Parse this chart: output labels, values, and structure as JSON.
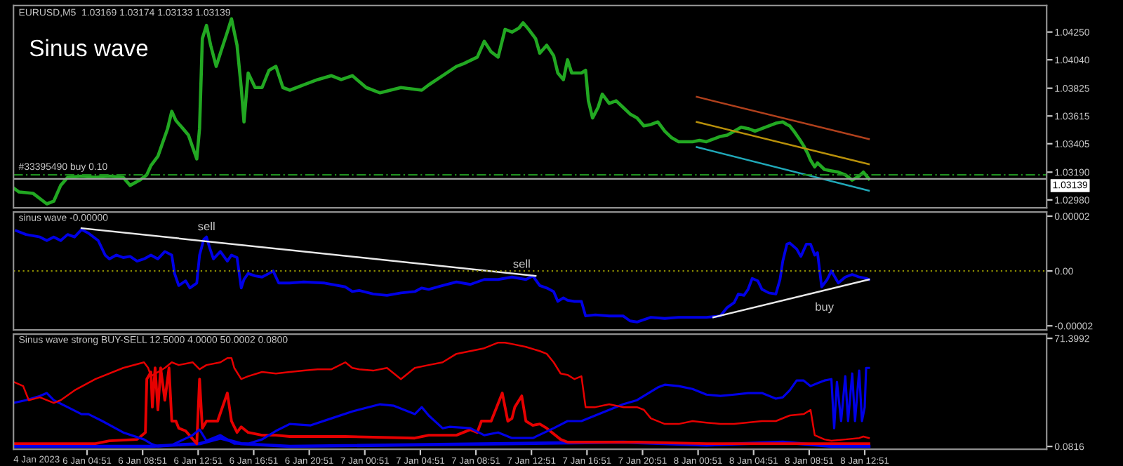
{
  "chart_data": [
    {
      "type": "line",
      "title": "EURUSD,M5  1.03169 1.03174 1.03133 1.03139",
      "annotations": [
        "Sinus wave"
      ],
      "xlim": [
        "2023-01-05T23:33",
        "2023-01-09T01:57"
      ],
      "ylim": [
        1.0292,
        1.0445
      ],
      "tick_labels": "y",
      "yticks": [
        {
          "value": 1.0425,
          "label": "1.04250"
        },
        {
          "value": 1.0404,
          "label": "1.04040"
        },
        {
          "value": 1.03825,
          "label": "1.03825"
        },
        {
          "value": 1.03615,
          "label": "1.03615"
        },
        {
          "value": 1.03405,
          "label": "1.03405"
        },
        {
          "value": 1.0319,
          "label": "1.03190"
        },
        {
          "value": 1.0298,
          "label": "1.02980"
        }
      ],
      "ref_lines": [
        {
          "axis": "y",
          "value": 1.0317,
          "label": "#33395490 buy 0.10",
          "color": "#1e8c1e",
          "line_style": "dashed"
        },
        {
          "axis": "y",
          "value": 1.03139,
          "label": "1.03139",
          "color": "#a0a0a0",
          "line_style": "solid"
        }
      ],
      "series": [
        {
          "color": "#22a822",
          "x": [
            "2023-01-05T23:33",
            "2023-01-05T23:57",
            "2023-01-06T00:57",
            "2023-01-06T01:57",
            "2023-01-06T02:27",
            "2023-01-06T02:57",
            "2023-01-06T03:27",
            "2023-01-06T04:27",
            "2023-01-06T05:27",
            "2023-01-06T06:27",
            "2023-01-06T07:27",
            "2023-01-06T07:57",
            "2023-01-06T08:39",
            "2023-01-06T09:09",
            "2023-01-06T09:27",
            "2023-01-06T09:57",
            "2023-01-06T10:15",
            "2023-01-06T10:39",
            "2023-01-06T10:57",
            "2023-01-06T11:15",
            "2023-01-06T11:45",
            "2023-01-06T12:09",
            "2023-01-06T12:45",
            "2023-01-06T12:57",
            "2023-01-06T13:09",
            "2023-01-06T13:27",
            "2023-01-06T13:45",
            "2023-01-06T14:09",
            "2023-01-06T14:27",
            "2023-01-06T14:57",
            "2023-01-06T15:15",
            "2023-01-06T15:39",
            "2023-01-06T15:57",
            "2023-01-06T16:09",
            "2023-01-06T16:27",
            "2023-01-06T16:57",
            "2023-01-06T17:27",
            "2023-01-06T17:57",
            "2023-01-06T18:27",
            "2023-01-06T18:57",
            "2023-01-06T19:27",
            "2023-01-06T20:27",
            "2023-01-06T21:27",
            "2023-01-06T22:27",
            "2023-01-06T23:09",
            "2023-01-06T23:57",
            "2023-01-07T00:57",
            "2023-01-07T01:57",
            "2023-01-07T03:27",
            "2023-01-07T04:57",
            "2023-01-07T05:27",
            "2023-01-07T06:27",
            "2023-01-07T07:27",
            "2023-01-07T07:57",
            "2023-01-07T08:57",
            "2023-01-07T09:27",
            "2023-01-07T09:57",
            "2023-01-07T10:27",
            "2023-01-07T10:57",
            "2023-01-07T11:27",
            "2023-01-07T11:57",
            "2023-01-07T12:15",
            "2023-01-07T12:39",
            "2023-01-07T13:09",
            "2023-01-07T13:27",
            "2023-01-07T13:57",
            "2023-01-07T14:27",
            "2023-01-07T14:45",
            "2023-01-07T15:09",
            "2023-01-07T15:27",
            "2023-01-07T15:45",
            "2023-01-07T16:27",
            "2023-01-07T16:45",
            "2023-01-07T16:57",
            "2023-01-07T17:15",
            "2023-01-07T17:39",
            "2023-01-07T17:57",
            "2023-01-07T18:27",
            "2023-01-07T18:57",
            "2023-01-07T19:27",
            "2023-01-07T19:57",
            "2023-01-07T20:27",
            "2023-01-07T20:57",
            "2023-01-07T21:27",
            "2023-01-07T21:57",
            "2023-01-07T22:27",
            "2023-01-07T22:57",
            "2023-01-07T23:27",
            "2023-01-08T00:27",
            "2023-01-08T00:57",
            "2023-01-08T01:27",
            "2023-01-08T01:57",
            "2023-01-08T02:27",
            "2023-01-08T02:57",
            "2023-01-08T03:27",
            "2023-01-08T03:57",
            "2023-01-08T04:27",
            "2023-01-08T04:57",
            "2023-01-08T05:27",
            "2023-01-08T05:57",
            "2023-01-08T06:27",
            "2023-01-08T06:57",
            "2023-01-08T07:15",
            "2023-01-08T07:27",
            "2023-01-08T07:45",
            "2023-01-08T08:09",
            "2023-01-08T08:27",
            "2023-01-08T08:45",
            "2023-01-08T08:57",
            "2023-01-08T09:15",
            "2023-01-08T09:27",
            "2023-01-08T09:57",
            "2023-01-08T10:27",
            "2023-01-08T10:57",
            "2023-01-08T11:27",
            "2023-01-08T11:57",
            "2023-01-08T12:27",
            "2023-01-08T12:45",
            "2023-01-08T13:09"
          ],
          "values": [
            1.0307,
            1.0304,
            1.0303,
            1.0295,
            1.0297,
            1.0309,
            1.0315,
            1.0316,
            1.0315,
            1.0316,
            1.0315,
            1.0309,
            1.0313,
            1.0317,
            1.0324,
            1.0331,
            1.034,
            1.0352,
            1.0365,
            1.0358,
            1.0352,
            1.0347,
            1.0329,
            1.0352,
            1.042,
            1.043,
            1.0415,
            1.0399,
            1.0409,
            1.0425,
            1.0435,
            1.0415,
            1.0383,
            1.0357,
            1.0394,
            1.0383,
            1.0383,
            1.0396,
            1.0399,
            1.0383,
            1.0381,
            1.0385,
            1.0389,
            1.0392,
            1.0389,
            1.0392,
            1.0383,
            1.0379,
            1.0383,
            1.0381,
            1.0385,
            1.0392,
            1.0399,
            1.0401,
            1.0406,
            1.0418,
            1.041,
            1.0406,
            1.0427,
            1.0425,
            1.0428,
            1.0432,
            1.0427,
            1.042,
            1.0409,
            1.0415,
            1.0407,
            1.0394,
            1.0389,
            1.0404,
            1.0394,
            1.0394,
            1.0396,
            1.0373,
            1.036,
            1.0368,
            1.0378,
            1.0371,
            1.0373,
            1.0368,
            1.0363,
            1.036,
            1.0354,
            1.0355,
            1.0357,
            1.035,
            1.0345,
            1.0342,
            1.0342,
            1.0343,
            1.0342,
            1.0344,
            1.0346,
            1.0347,
            1.035,
            1.0353,
            1.0352,
            1.035,
            1.0352,
            1.0354,
            1.0356,
            1.0357,
            1.0355,
            1.0354,
            1.035,
            1.0344,
            1.0339,
            1.0333,
            1.0328,
            1.0323,
            1.0326,
            1.0321,
            1.032,
            1.0319,
            1.0317,
            1.0313,
            1.0316,
            1.0319,
            1.0314
          ]
        },
        {
          "color": "#b0401c",
          "x": [
            "2023-01-08T00:45",
            "2023-01-08T13:09"
          ],
          "values": [
            1.0376,
            1.0344
          ]
        },
        {
          "color": "#b8900a",
          "x": [
            "2023-01-08T00:45",
            "2023-01-08T13:09"
          ],
          "values": [
            1.0357,
            1.0325
          ]
        },
        {
          "color": "#20a8b8",
          "x": [
            "2023-01-08T00:45",
            "2023-01-08T13:09"
          ],
          "values": [
            1.0338,
            1.0305
          ]
        }
      ]
    },
    {
      "type": "line",
      "title": "sinus wave -0.00000",
      "xlim": [
        "2023-01-05T23:33",
        "2023-01-09T01:57"
      ],
      "ylim": [
        -2.15e-05,
        2.15e-05
      ],
      "tick_labels": "y",
      "yticks": [
        {
          "value": 2e-05,
          "label": "0.00002"
        },
        {
          "value": 0,
          "label": "0.00"
        },
        {
          "value": -2e-05,
          "label": "-0.00002"
        }
      ],
      "ref_lines": [
        {
          "axis": "y",
          "value": 0,
          "color": "#8a8a00",
          "line_style": "dotted"
        }
      ],
      "annotations": [
        {
          "text": "sell",
          "x": "2023-01-06T13:27",
          "y": 1.24e-05
        },
        {
          "text": "sell",
          "x": "2023-01-07T12:09",
          "y": -1.3e-06
        },
        {
          "text": "buy",
          "x": "2023-01-08T09:57",
          "y": -7e-06
        }
      ],
      "series": [
        {
          "color": "#0000e6",
          "x": [
            "2023-01-05T23:45",
            "2023-01-06T00:27",
            "2023-01-06T01:27",
            "2023-01-06T01:57",
            "2023-01-06T02:27",
            "2023-01-06T02:57",
            "2023-01-06T03:27",
            "2023-01-06T03:57",
            "2023-01-06T04:27",
            "2023-01-06T04:57",
            "2023-01-06T05:39",
            "2023-01-06T06:09",
            "2023-01-06T06:27",
            "2023-01-06T06:57",
            "2023-01-06T07:27",
            "2023-01-06T07:57",
            "2023-01-06T08:27",
            "2023-01-06T08:57",
            "2023-01-06T09:27",
            "2023-01-06T09:57",
            "2023-01-06T10:27",
            "2023-01-06T10:57",
            "2023-01-06T11:09",
            "2023-01-06T11:27",
            "2023-01-06T11:57",
            "2023-01-06T12:15",
            "2023-01-06T12:45",
            "2023-01-06T12:57",
            "2023-01-06T13:15",
            "2023-01-06T13:27",
            "2023-01-06T13:39",
            "2023-01-06T13:57",
            "2023-01-06T14:27",
            "2023-01-06T14:57",
            "2023-01-06T15:15",
            "2023-01-06T15:39",
            "2023-01-06T15:57",
            "2023-01-06T16:09",
            "2023-01-06T16:27",
            "2023-01-06T16:57",
            "2023-01-06T17:27",
            "2023-01-06T17:57",
            "2023-01-06T18:15",
            "2023-01-06T18:39",
            "2023-01-06T19:27",
            "2023-01-06T20:27",
            "2023-01-06T21:57",
            "2023-01-06T23:27",
            "2023-01-06T23:57",
            "2023-01-07T00:27",
            "2023-01-07T01:27",
            "2023-01-07T02:27",
            "2023-01-07T03:27",
            "2023-01-07T04:27",
            "2023-01-07T04:57",
            "2023-01-07T05:27",
            "2023-01-07T06:27",
            "2023-01-07T07:27",
            "2023-01-07T08:27",
            "2023-01-07T09:27",
            "2023-01-07T10:27",
            "2023-01-07T11:27",
            "2023-01-07T12:27",
            "2023-01-07T12:57",
            "2023-01-07T13:27",
            "2023-01-07T13:57",
            "2023-01-07T14:27",
            "2023-01-07T14:45",
            "2023-01-07T15:09",
            "2023-01-07T15:27",
            "2023-01-07T15:57",
            "2023-01-07T16:27",
            "2023-01-07T16:45",
            "2023-01-07T17:27",
            "2023-01-07T18:27",
            "2023-01-07T19:27",
            "2023-01-07T19:57",
            "2023-01-07T20:27",
            "2023-01-07T21:27",
            "2023-01-07T22:27",
            "2023-01-07T23:27",
            "2023-01-08T00:27",
            "2023-01-08T01:27",
            "2023-01-08T02:27",
            "2023-01-08T02:57",
            "2023-01-08T03:27",
            "2023-01-08T03:45",
            "2023-01-08T04:09",
            "2023-01-08T04:27",
            "2023-01-08T04:45",
            "2023-01-08T05:09",
            "2023-01-08T05:27",
            "2023-01-08T05:57",
            "2023-01-08T06:27",
            "2023-01-08T06:45",
            "2023-01-08T06:57",
            "2023-01-08T07:15",
            "2023-01-08T07:27",
            "2023-01-08T07:57",
            "2023-01-08T08:15",
            "2023-01-08T08:39",
            "2023-01-08T08:57",
            "2023-01-08T09:15",
            "2023-01-08T09:27",
            "2023-01-08T09:45",
            "2023-01-08T10:09",
            "2023-01-08T10:27",
            "2023-01-08T10:57",
            "2023-01-08T11:27",
            "2023-01-08T11:57",
            "2023-01-08T12:27",
            "2023-01-08T12:57",
            "2023-01-08T13:09"
          ],
          "values": [
            1.47e-05,
            1.33e-05,
            1.24e-05,
            1.11e-05,
            1.24e-05,
            1.11e-05,
            1.33e-05,
            1.24e-05,
            1.51e-05,
            1.38e-05,
            1.11e-05,
            5.8e-06,
            4.4e-06,
            5.8e-06,
            4.9e-06,
            5.3e-06,
            3.6e-06,
            4.4e-06,
            5.8e-06,
            4.4e-06,
            7.1e-06,
            5.8e-06,
            -9e-07,
            -5.3e-06,
            -3.6e-06,
            -6.2e-06,
            -4.4e-06,
            5.8e-06,
            1.15e-05,
            1.24e-05,
            8.9e-06,
            4.4e-06,
            7.1e-06,
            3.6e-06,
            5.8e-06,
            4.9e-06,
            -6.2e-06,
            -3.1e-06,
            -9e-07,
            -1.8e-06,
            -2.2e-06,
            -9e-07,
            0,
            -4.4e-06,
            -4.4e-06,
            -4e-06,
            -4.4e-06,
            -5.8e-06,
            -7.5e-06,
            -7.1e-06,
            -8.4e-06,
            -8.9e-06,
            -8e-06,
            -7.5e-06,
            -6.2e-06,
            -6.7e-06,
            -5.3e-06,
            -4e-06,
            -4.9e-06,
            -3.1e-06,
            -3.1e-06,
            -2.2e-06,
            -3.1e-06,
            -1.8e-06,
            -5.3e-06,
            -6.2e-06,
            -7.5e-06,
            -1.11e-05,
            -9.8e-06,
            -1.07e-05,
            -1.11e-05,
            -1.11e-05,
            -1.64e-05,
            -1.6e-05,
            -1.64e-05,
            -1.64e-05,
            -1.82e-05,
            -1.86e-05,
            -1.69e-05,
            -1.73e-05,
            -1.69e-05,
            -1.69e-05,
            -1.69e-05,
            -1.64e-05,
            -1.33e-05,
            -1.15e-05,
            -8.4e-06,
            -8.9e-06,
            -6.7e-06,
            -2.7e-06,
            -3.6e-06,
            -6.7e-06,
            -8e-06,
            -8.4e-06,
            -3.1e-06,
            3.6e-06,
            9.8e-06,
            1.02e-05,
            8e-06,
            5.3e-06,
            9.8e-06,
            9.8e-06,
            5.8e-06,
            6.7e-06,
            -5.8e-06,
            -3.1e-06,
            0,
            -4.4e-06,
            -2.2e-06,
            -1.3e-06,
            -2.2e-06,
            -2.7e-06,
            -3.1e-06
          ]
        },
        {
          "color": "#e8e8e8",
          "x": [
            "2023-01-06T04:27",
            "2023-01-07T13:09"
          ],
          "values": [
            1.56e-05,
            -1.8e-06
          ]
        },
        {
          "color": "#e8e8e8",
          "x": [
            "2023-01-08T01:57",
            "2023-01-08T13:09"
          ],
          "values": [
            -1.69e-05,
            -3.1e-06
          ]
        }
      ]
    },
    {
      "type": "line",
      "title": "Sinus wave strong BUY-SELL 12.5000 4.0000 50.0002 0.0800",
      "xlim": [
        "2023-01-05T23:33",
        "2023-01-09T01:57"
      ],
      "ylim": [
        -1.77,
        74.2
      ],
      "yticks": [
        {
          "value": 71.3992,
          "label": "71.3992"
        },
        {
          "value": 0.0816,
          "label": "0.0816"
        }
      ],
      "annotations": [
        "4 Jan 2023"
      ],
      "xticks": [
        {
          "value": "2023-01-06T04:51",
          "label": "6 Jan 04:51"
        },
        {
          "value": "2023-01-06T08:51",
          "label": "6 Jan 08:51"
        },
        {
          "value": "2023-01-06T12:51",
          "label": "6 Jan 12:51"
        },
        {
          "value": "2023-01-06T16:51",
          "label": "6 Jan 16:51"
        },
        {
          "value": "2023-01-06T20:51",
          "label": "6 Jan 20:51"
        },
        {
          "value": "2023-01-07T00:51",
          "label": "7 Jan 00:51"
        },
        {
          "value": "2023-01-07T04:51",
          "label": "7 Jan 04:51"
        },
        {
          "value": "2023-01-07T08:51",
          "label": "7 Jan 08:51"
        },
        {
          "value": "2023-01-07T12:51",
          "label": "7 Jan 12:51"
        },
        {
          "value": "2023-01-07T16:51",
          "label": "7 Jan 16:51"
        },
        {
          "value": "2023-01-07T20:51",
          "label": "7 Jan 20:51"
        },
        {
          "value": "2023-01-08T00:51",
          "label": "8 Jan 00:51"
        },
        {
          "value": "2023-01-08T04:51",
          "label": "8 Jan 04:51"
        },
        {
          "value": "2023-01-08T08:51",
          "label": "8 Jan 08:51"
        },
        {
          "value": "2023-01-08T12:51",
          "label": "8 Jan 12:51"
        }
      ],
      "series": [
        {
          "color": "#0000e6",
          "x": [
            "2023-01-05T23:33",
            "2023-01-06T09:27",
            "2023-01-06T12:57",
            "2023-01-06T14:27",
            "2023-01-06T15:57",
            "2023-01-06T19:27",
            "2023-01-07T19:27",
            "2023-01-08T01:27",
            "2023-01-08T06:57",
            "2023-01-08T10:27",
            "2023-01-08T13:09"
          ],
          "values": [
            0.1,
            0.1,
            1.9,
            5.6,
            1.9,
            0.1,
            2.9,
            1.0,
            2.9,
            0.1,
            0.1
          ]
        },
        {
          "color": "#e60000",
          "x": [
            "2023-01-05T23:33",
            "2023-01-06T03:27",
            "2023-01-06T05:27",
            "2023-01-06T06:27",
            "2023-01-06T08:27",
            "2023-01-06T09:03",
            "2023-01-06T09:09",
            "2023-01-06T09:27",
            "2023-01-06T09:33",
            "2023-01-06T09:45",
            "2023-01-06T09:57",
            "2023-01-06T10:09",
            "2023-01-06T10:27",
            "2023-01-06T10:45",
            "2023-01-06T10:57",
            "2023-01-06T11:15",
            "2023-01-06T11:27",
            "2023-01-06T11:57",
            "2023-01-06T12:45",
            "2023-01-06T12:57",
            "2023-01-06T13:09",
            "2023-01-06T13:27",
            "2023-01-06T13:45",
            "2023-01-06T14:15",
            "2023-01-06T14:57",
            "2023-01-06T15:15",
            "2023-01-06T15:39",
            "2023-01-06T15:57",
            "2023-01-06T16:27",
            "2023-01-06T17:27",
            "2023-01-06T18:27",
            "2023-01-06T19:27",
            "2023-01-06T23:27",
            "2023-01-07T04:27",
            "2023-01-07T05:27",
            "2023-01-07T07:27",
            "2023-01-07T08:27",
            "2023-01-07T08:57",
            "2023-01-07T09:15",
            "2023-01-07T09:57",
            "2023-01-07T10:45",
            "2023-01-07T11:09",
            "2023-01-07T11:27",
            "2023-01-07T11:39",
            "2023-01-07T12:09",
            "2023-01-07T12:27",
            "2023-01-07T12:57",
            "2023-01-07T13:27",
            "2023-01-07T13:57",
            "2023-01-07T14:57",
            "2023-01-07T15:27",
            "2023-01-07T20:27",
            "2023-01-08T01:27",
            "2023-01-08T05:27",
            "2023-01-08T09:27",
            "2023-01-08T13:09"
          ],
          "values": [
            1.9,
            1.9,
            1.9,
            3.8,
            4.7,
            9.3,
            44.5,
            49.2,
            26.0,
            51.9,
            24.2,
            51.9,
            30.6,
            51.9,
            16.8,
            16.8,
            12.1,
            10.3,
            1.9,
            44.5,
            12.1,
            16.8,
            16.8,
            16.8,
            35.3,
            16.8,
            9.3,
            13.0,
            9.3,
            7.5,
            7.5,
            6.6,
            6.6,
            5.6,
            7.5,
            7.5,
            11.2,
            9.3,
            16.8,
            16.8,
            35.3,
            16.8,
            18.6,
            26.0,
            33.4,
            16.8,
            14.0,
            14.9,
            12.1,
            4.7,
            2.9,
            2.9,
            1.9,
            1.9,
            1.9,
            1.9
          ]
        },
        {
          "color": "#0000e6",
          "x": [
            "2023-01-05T23:33",
            "2023-01-06T00:27",
            "2023-01-06T01:27",
            "2023-01-06T01:57",
            "2023-01-06T02:27",
            "2023-01-06T03:27",
            "2023-01-06T04:27",
            "2023-01-06T04:57",
            "2023-01-06T05:57",
            "2023-01-06T07:27",
            "2023-01-06T08:57",
            "2023-01-06T09:27",
            "2023-01-06T09:57",
            "2023-01-06T10:57",
            "2023-01-06T12:27",
            "2023-01-06T12:57",
            "2023-01-06T13:27",
            "2023-01-06T14:27",
            "2023-01-06T15:27",
            "2023-01-06T16:27",
            "2023-01-06T17:27",
            "2023-01-06T18:27",
            "2023-01-06T19:27",
            "2023-01-06T20:57",
            "2023-01-06T22:27",
            "2023-01-06T23:57",
            "2023-01-07T01:57",
            "2023-01-07T02:57",
            "2023-01-07T04:27",
            "2023-01-07T04:57",
            "2023-01-07T05:27",
            "2023-01-07T06:27",
            "2023-01-07T06:57",
            "2023-01-07T08:27",
            "2023-01-07T09:27",
            "2023-01-07T10:27",
            "2023-01-07T11:27",
            "2023-01-07T12:57",
            "2023-01-07T14:27",
            "2023-01-07T15:27",
            "2023-01-07T16:27",
            "2023-01-07T17:27",
            "2023-01-07T18:27",
            "2023-01-07T19:27",
            "2023-01-07T20:27",
            "2023-01-07T21:27",
            "2023-01-07T21:57",
            "2023-01-07T22:27",
            "2023-01-07T23:27",
            "2023-01-08T00:27",
            "2023-01-08T01:27",
            "2023-01-08T02:27",
            "2023-01-08T03:27",
            "2023-01-08T04:27",
            "2023-01-08T05:27",
            "2023-01-08T06:27",
            "2023-01-08T06:57",
            "2023-01-08T07:27",
            "2023-01-08T07:57",
            "2023-01-08T08:27",
            "2023-01-08T08:57",
            "2023-01-08T09:27",
            "2023-01-08T09:57",
            "2023-01-08T10:27",
            "2023-01-08T10:39",
            "2023-01-08T10:51",
            "2023-01-08T11:09",
            "2023-01-08T11:27",
            "2023-01-08T11:39",
            "2023-01-08T11:57",
            "2023-01-08T12:09",
            "2023-01-08T12:27",
            "2023-01-08T12:39",
            "2023-01-08T12:51",
            "2023-01-08T12:57",
            "2023-01-08T13:09"
          ],
          "values": [
            28.8,
            30.6,
            33.4,
            35.3,
            30.6,
            26.0,
            21.4,
            21.4,
            16.8,
            9.3,
            4.7,
            1.9,
            0.1,
            1.0,
            7.5,
            11.2,
            3.8,
            7.5,
            1.9,
            1.9,
            4.7,
            10.3,
            14.9,
            14.0,
            18.6,
            23.2,
            27.9,
            26.9,
            21.4,
            26.0,
            20.5,
            12.1,
            13.0,
            12.1,
            7.5,
            9.3,
            5.6,
            5.6,
            12.1,
            16.8,
            16.8,
            20.5,
            24.2,
            27.9,
            30.6,
            36.2,
            39.0,
            40.8,
            39.9,
            38.0,
            34.3,
            33.4,
            34.3,
            35.3,
            35.3,
            31.6,
            32.5,
            37.1,
            43.6,
            43.6,
            39.9,
            41.8,
            43.6,
            44.5,
            12.1,
            42.7,
            16.8,
            46.4,
            16.8,
            48.2,
            16.8,
            50.1,
            16.8,
            26.0,
            51.9,
            51.9
          ]
        },
        {
          "color": "#e60000",
          "x": [
            "2023-01-05T23:33",
            "2023-01-06T00:15",
            "2023-01-06T00:39",
            "2023-01-06T01:27",
            "2023-01-06T02:27",
            "2023-01-06T02:57",
            "2023-01-06T03:57",
            "2023-01-06T05:27",
            "2023-01-06T07:27",
            "2023-01-06T08:57",
            "2023-01-06T09:15",
            "2023-01-06T09:27",
            "2023-01-06T10:27",
            "2023-01-06T10:57",
            "2023-01-06T11:27",
            "2023-01-06T12:27",
            "2023-01-06T12:57",
            "2023-01-06T13:27",
            "2023-01-06T14:27",
            "2023-01-06T14:57",
            "2023-01-06T15:15",
            "2023-01-06T15:27",
            "2023-01-06T15:57",
            "2023-01-06T16:27",
            "2023-01-06T17:27",
            "2023-01-06T18:27",
            "2023-01-06T19:27",
            "2023-01-06T20:27",
            "2023-01-06T21:27",
            "2023-01-06T22:27",
            "2023-01-06T23:27",
            "2023-01-06T23:57",
            "2023-01-07T00:27",
            "2023-01-07T01:27",
            "2023-01-07T02:27",
            "2023-01-07T03:27",
            "2023-01-07T04:27",
            "2023-01-07T05:27",
            "2023-01-07T06:27",
            "2023-01-07T07:27",
            "2023-01-07T08:27",
            "2023-01-07T09:27",
            "2023-01-07T10:27",
            "2023-01-07T10:57",
            "2023-01-07T11:27",
            "2023-01-07T12:27",
            "2023-01-07T13:27",
            "2023-01-07T13:57",
            "2023-01-07T14:27",
            "2023-01-07T14:57",
            "2023-01-07T15:27",
            "2023-01-07T15:57",
            "2023-01-07T16:27",
            "2023-01-07T16:45",
            "2023-01-07T17:27",
            "2023-01-07T18:27",
            "2023-01-07T19:27",
            "2023-01-07T20:27",
            "2023-01-07T20:57",
            "2023-01-07T21:27",
            "2023-01-07T22:27",
            "2023-01-07T23:27",
            "2023-01-08T00:27",
            "2023-01-08T01:27",
            "2023-01-08T02:27",
            "2023-01-08T03:27",
            "2023-01-08T05:27",
            "2023-01-08T06:27",
            "2023-01-08T07:27",
            "2023-01-08T08:27",
            "2023-01-08T08:57",
            "2023-01-08T09:15",
            "2023-01-08T09:57",
            "2023-01-08T10:27",
            "2023-01-08T11:27",
            "2023-01-08T12:27",
            "2023-01-08T12:45",
            "2023-01-08T13:09"
          ],
          "values": [
            42.7,
            39.9,
            30.6,
            32.5,
            28.8,
            30.6,
            37.1,
            44.5,
            51.9,
            55.6,
            51.9,
            46.4,
            51.9,
            55.6,
            53.8,
            55.6,
            51.0,
            53.8,
            55.6,
            58.4,
            58.4,
            51.9,
            44.5,
            46.4,
            49.2,
            48.2,
            49.2,
            50.1,
            51.0,
            51.0,
            55.6,
            51.9,
            51.0,
            50.1,
            51.9,
            44.5,
            51.9,
            53.8,
            55.6,
            61.2,
            63.0,
            64.9,
            68.6,
            68.6,
            67.7,
            65.8,
            63.0,
            61.2,
            55.6,
            48.2,
            47.3,
            44.5,
            46.4,
            26.0,
            26.0,
            27.9,
            26.0,
            26.0,
            24.2,
            18.6,
            14.9,
            14.9,
            16.8,
            15.8,
            14.9,
            14.9,
            16.8,
            16.8,
            20.5,
            21.4,
            24.2,
            7.5,
            4.7,
            3.8,
            4.7,
            5.6,
            6.6,
            5.6
          ]
        }
      ]
    }
  ]
}
